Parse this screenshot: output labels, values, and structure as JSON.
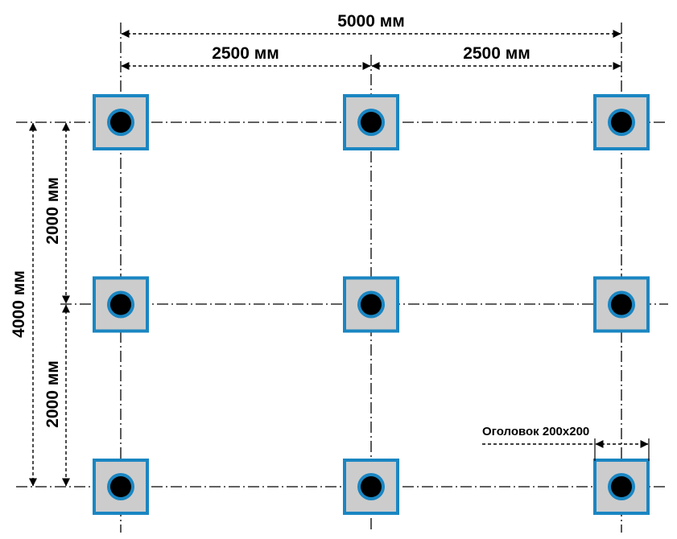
{
  "dimensions": {
    "total_width_label": "5000 мм",
    "span_left_label": "2500 мм",
    "span_right_label": "2500 мм",
    "total_height_label": "4000 мм",
    "span_top_label": "2000 мм",
    "span_bottom_label": "2000 мм",
    "pile_cap_label": "Оголовок 200х200"
  },
  "grid": {
    "columns_x_mm": [
      0,
      2500,
      5000
    ],
    "rows_y_mm": [
      0,
      2000,
      4000
    ]
  },
  "colors": {
    "cap_fill": "#cccccc",
    "cap_border": "#1a86c2",
    "pile_ring": "#1a86c2",
    "pile_core": "#000000",
    "lines": "#000000"
  }
}
